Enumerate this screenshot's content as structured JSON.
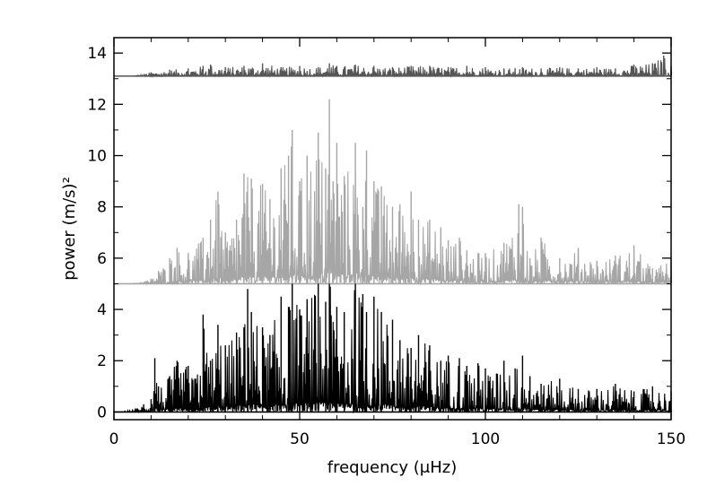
{
  "chart_data": {
    "type": "line",
    "title": "",
    "xlabel": "frequency (μHz)",
    "ylabel": "power (m/s)²",
    "xlim": [
      0,
      150
    ],
    "ylim": [
      -0.3,
      14.6
    ],
    "grid": false,
    "legend": "none",
    "x_ticks": [
      "0",
      "50",
      "100",
      "150"
    ],
    "y_ticks": [
      "0",
      "2",
      "4",
      "6",
      "8",
      "10",
      "12",
      "14"
    ],
    "colors": {
      "top": "#555555",
      "middle": "#a6a6a6",
      "bottom": "#000000"
    },
    "series": [
      {
        "style": "dark gray, spectrum offset to baseline 13.1",
        "baseline": 13.1,
        "x": [
          5,
          10,
          15,
          20,
          24,
          26,
          30,
          35,
          40,
          45,
          50,
          55,
          58,
          60,
          65,
          70,
          75,
          80,
          85,
          90,
          95,
          100,
          105,
          110,
          115,
          120,
          125,
          130,
          135,
          140,
          145,
          148,
          150
        ],
        "y": [
          13.1,
          13.25,
          13.35,
          13.4,
          13.5,
          13.55,
          13.45,
          13.5,
          13.6,
          13.45,
          13.5,
          13.45,
          13.6,
          13.5,
          13.55,
          13.5,
          13.45,
          13.5,
          13.5,
          13.45,
          13.5,
          13.45,
          13.4,
          13.45,
          13.4,
          13.45,
          13.4,
          13.45,
          13.4,
          13.55,
          13.6,
          13.9,
          13.5
        ]
      },
      {
        "style": "light gray, spectrum offset to baseline 5.0",
        "baseline": 5.0,
        "x": [
          5,
          10,
          12,
          15,
          17,
          20,
          24,
          26,
          28,
          30,
          33,
          35,
          37,
          40,
          42,
          45,
          47,
          48,
          50,
          52,
          55,
          57,
          58,
          59,
          60,
          62,
          65,
          67,
          68,
          70,
          72,
          75,
          77,
          80,
          82,
          85,
          88,
          90,
          93,
          95,
          100,
          105,
          109,
          110,
          112,
          115,
          120,
          125,
          130,
          135,
          140,
          145,
          150
        ],
        "y": [
          5.0,
          5.2,
          5.5,
          6.0,
          6.4,
          6.2,
          6.8,
          7.5,
          8.6,
          7.0,
          7.5,
          9.3,
          9.1,
          8.9,
          8.3,
          9.5,
          10.0,
          11.0,
          9.0,
          10.0,
          10.9,
          9.5,
          12.2,
          9.0,
          10.5,
          9.2,
          10.5,
          8.0,
          10.2,
          9.0,
          8.8,
          8.0,
          8.1,
          8.6,
          7.5,
          7.5,
          7.2,
          6.7,
          6.8,
          6.3,
          6.2,
          6.6,
          8.1,
          8.0,
          6.0,
          6.8,
          6.0,
          6.4,
          5.9,
          6.1,
          6.5,
          5.6,
          6.0
        ]
      },
      {
        "style": "black, spectrum at baseline 0",
        "baseline": 0,
        "x": [
          2,
          5,
          8,
          10,
          11,
          12,
          15,
          17,
          20,
          22,
          24,
          26,
          28,
          30,
          33,
          35,
          36,
          37,
          40,
          42,
          45,
          47,
          48,
          50,
          52,
          55,
          57,
          58,
          60,
          62,
          65,
          67,
          68,
          70,
          72,
          75,
          77,
          80,
          82,
          85,
          88,
          90,
          93,
          95,
          98,
          100,
          103,
          105,
          108,
          110,
          112,
          115,
          120,
          125,
          130,
          135,
          140,
          145,
          150
        ],
        "y": [
          0.0,
          0.1,
          0.3,
          0.5,
          2.1,
          1.0,
          1.4,
          2.0,
          1.8,
          1.3,
          3.8,
          2.0,
          3.4,
          2.6,
          3.1,
          3.3,
          4.8,
          3.9,
          3.3,
          3.0,
          4.5,
          4.1,
          5.0,
          4.0,
          4.4,
          5.0,
          4.3,
          5.0,
          4.1,
          3.9,
          5.0,
          4.6,
          3.9,
          4.5,
          3.9,
          3.6,
          2.8,
          2.5,
          3.0,
          2.6,
          2.0,
          2.2,
          2.1,
          1.8,
          1.9,
          1.7,
          1.5,
          2.0,
          1.7,
          2.2,
          1.4,
          1.1,
          1.3,
          0.9,
          0.9,
          1.1,
          0.8,
          1.0,
          0.8
        ]
      }
    ]
  }
}
